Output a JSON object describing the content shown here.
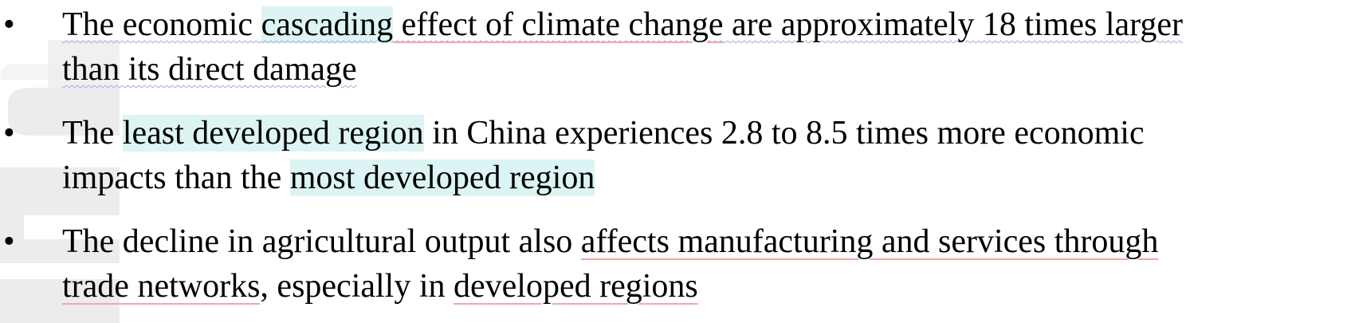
{
  "watermark": {
    "icon": "watermark-logo-icon",
    "color": "#ececec"
  },
  "bullet_symbol": "•",
  "highlight_color": "#dcf4f4",
  "underline_color": "#f0a8a8",
  "wavy_underline_color": "#a8a4e0",
  "bullets": [
    {
      "line1": {
        "a": "The economic ",
        "b": "cascading",
        "c": " effect of climate change",
        "d": " are approximately 18 times larger"
      },
      "line2": {
        "a": "than its direct damage"
      }
    },
    {
      "line1": {
        "a": "The ",
        "b": "least developed region",
        "c": " in China experiences 2.8 to 8.5 times more economic"
      },
      "line2": {
        "a": "impacts than the ",
        "b": "most developed region"
      }
    },
    {
      "line1": {
        "a": "The decline in agricultural output also ",
        "b": "affects manufacturing and services through"
      },
      "line2": {
        "a": "trade networks",
        "b": ", especially in ",
        "c": "developed regions"
      }
    }
  ]
}
